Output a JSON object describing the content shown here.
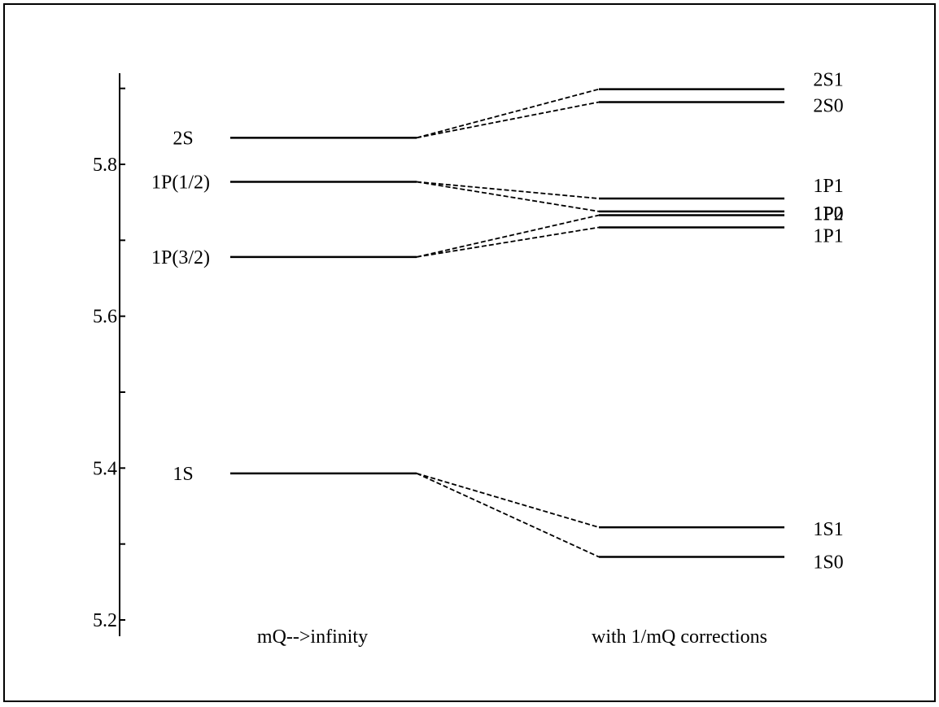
{
  "chart_data": {
    "type": "level-diagram",
    "ylim": [
      5.2,
      5.9
    ],
    "y_ticks": [
      5.2,
      5.3,
      5.4,
      5.5,
      5.6,
      5.7,
      5.8,
      5.9
    ],
    "y_tick_labels": [
      {
        "value": 5.8,
        "text": "5.8"
      },
      {
        "value": 5.6,
        "text": "5.6"
      },
      {
        "value": 5.4,
        "text": "5.4"
      },
      {
        "value": 5.2,
        "text": "5.2"
      }
    ],
    "columns": [
      {
        "label": "mQ-->infinity"
      },
      {
        "label": "with 1/mQ corrections"
      }
    ],
    "left_levels": [
      {
        "label": "2S",
        "value": 5.835
      },
      {
        "label": "1P(1/2)",
        "value": 5.777
      },
      {
        "label": "1P(3/2)",
        "value": 5.678
      },
      {
        "label": "1S",
        "value": 5.393
      }
    ],
    "right_levels": [
      {
        "label": "2S1",
        "value": 5.899,
        "parent": 0
      },
      {
        "label": "2S0",
        "value": 5.882,
        "parent": 0
      },
      {
        "label": "1P1",
        "value": 5.755,
        "parent": 1
      },
      {
        "label": "1P0",
        "value": 5.738,
        "parent": 1
      },
      {
        "label": "1P2",
        "value": 5.733,
        "parent": 2
      },
      {
        "label": "1P1",
        "value": 5.717,
        "parent": 2
      },
      {
        "label": "1S1",
        "value": 5.322,
        "parent": 3
      },
      {
        "label": "1S0",
        "value": 5.283,
        "parent": 3
      }
    ]
  }
}
